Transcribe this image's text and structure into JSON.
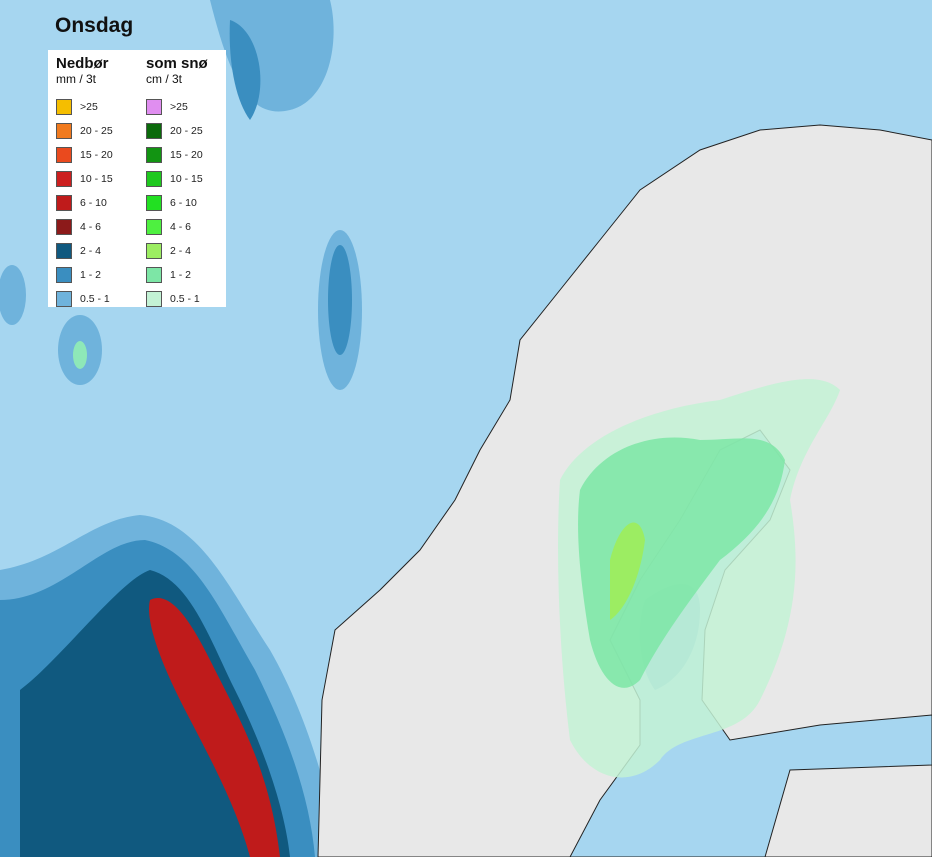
{
  "title": "Onsdag",
  "legend": {
    "rain": {
      "header": "Nedbør",
      "unit": "mm / 3t",
      "items": [
        {
          "label": ">25",
          "color": "#f5be00"
        },
        {
          "label": "20 - 25",
          "color": "#f07a1e"
        },
        {
          "label": "15 - 20",
          "color": "#ea4a1e"
        },
        {
          "label": "10 - 15",
          "color": "#cc1f1f"
        },
        {
          "label": "6 - 10",
          "color": "#bf1b1b"
        },
        {
          "label": "4 - 6",
          "color": "#8c1a1a"
        },
        {
          "label": "2 - 4",
          "color": "#10597f"
        },
        {
          "label": "1 - 2",
          "color": "#3a8ec0"
        },
        {
          "label": "0.5 - 1",
          "color": "#6fb3dc"
        }
      ]
    },
    "snow": {
      "header": "som snø",
      "unit": "cm / 3t",
      "items": [
        {
          "label": ">25",
          "color": "#e08ef0"
        },
        {
          "label": "20 - 25",
          "color": "#0b6a0b"
        },
        {
          "label": "15 - 20",
          "color": "#129412"
        },
        {
          "label": "10 - 15",
          "color": "#1ec81e"
        },
        {
          "label": "6 - 10",
          "color": "#22e022"
        },
        {
          "label": "4 - 6",
          "color": "#4ef040"
        },
        {
          "label": "2 - 4",
          "color": "#9ced62"
        },
        {
          "label": "1 - 2",
          "color": "#7de6a6"
        },
        {
          "label": "0.5 - 1",
          "color": "#c3f2d5"
        }
      ]
    }
  }
}
